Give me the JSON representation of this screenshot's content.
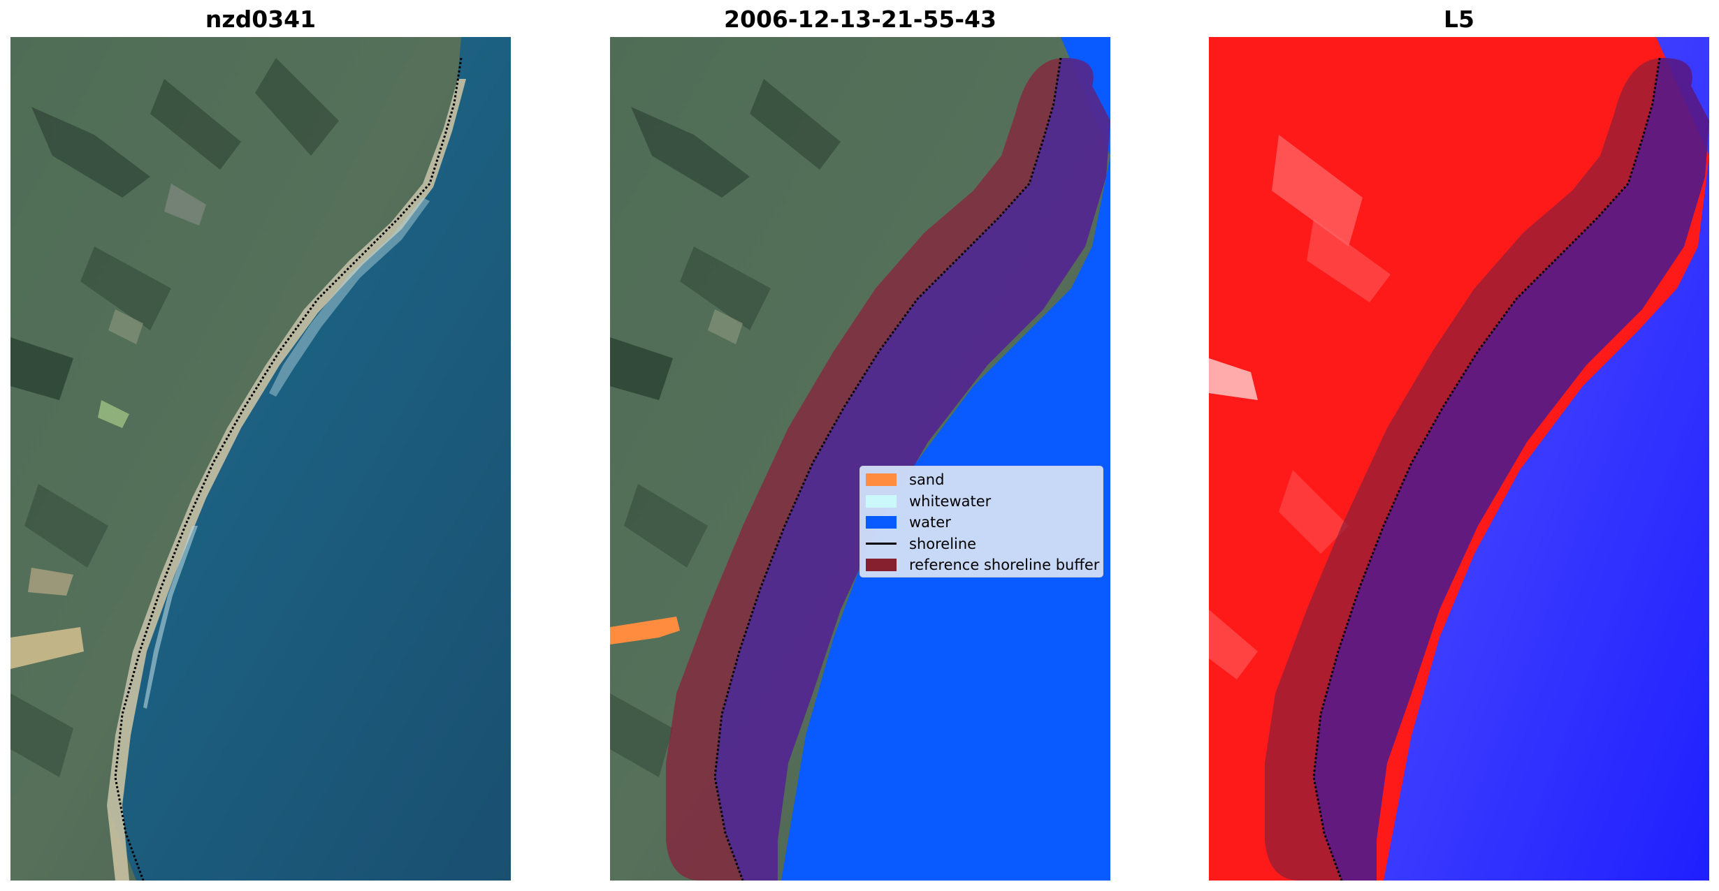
{
  "panels": [
    {
      "title": "nzd0341"
    },
    {
      "title": "2006-12-13-21-55-43"
    },
    {
      "title": "L5"
    }
  ],
  "legend": {
    "items": [
      {
        "label": "sand",
        "color": "#ff8c3f",
        "kind": "patch"
      },
      {
        "label": "whitewater",
        "color": "#cbf8fb",
        "kind": "patch"
      },
      {
        "label": "water",
        "color": "#0a5bff",
        "kind": "patch"
      },
      {
        "label": "shoreline",
        "color": "#000000",
        "kind": "line"
      },
      {
        "label": "reference shoreline buffer",
        "color": "#87202e",
        "kind": "patch"
      }
    ]
  },
  "colors": {
    "ocean": "#1f5e80",
    "land": "#48664f",
    "beach": "#b9b89a",
    "water_class": "#0a5bff",
    "buffer": "#8a1f3a",
    "index_positive": "#ff1a1a",
    "index_negative": "#2a2aff"
  }
}
